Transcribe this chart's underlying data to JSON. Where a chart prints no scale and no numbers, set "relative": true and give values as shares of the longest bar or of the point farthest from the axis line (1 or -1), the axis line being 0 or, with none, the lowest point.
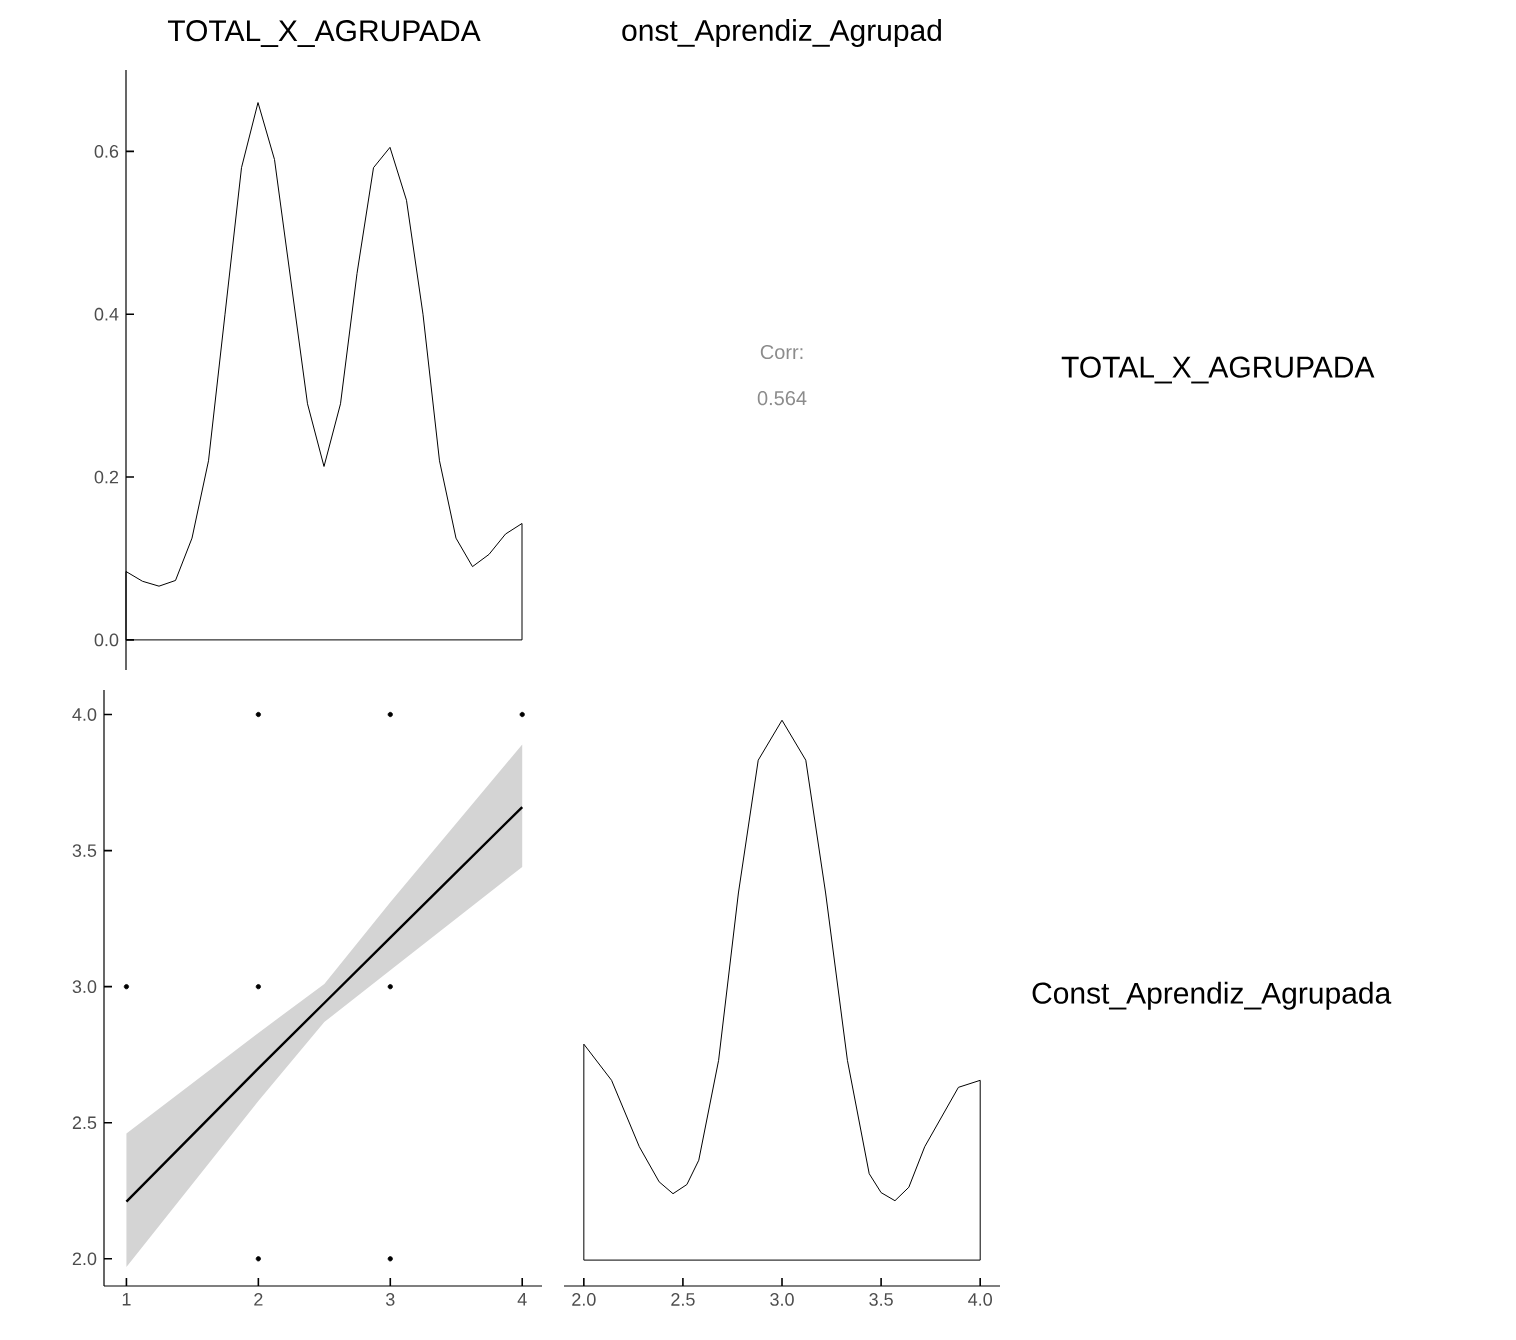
{
  "chart_data": [
    {
      "type": "line",
      "title": "TOTAL_X_AGRUPADA",
      "color": "#000000",
      "categories": [
        null,
        null,
        null,
        null,
        null,
        null,
        null,
        null,
        null,
        null,
        null,
        null,
        null,
        null,
        null,
        null,
        null,
        null,
        null,
        null,
        null,
        null,
        null,
        null,
        null
      ],
      "values": [
        0.084,
        0.072,
        0.066,
        0.073,
        0.125,
        0.22,
        0.4,
        0.58,
        0.66,
        0.59,
        0.44,
        0.29,
        0.213,
        0.29,
        0.45,
        0.58,
        0.605,
        0.54,
        0.4,
        0.22,
        0.125,
        0.09,
        0.105,
        0.13,
        0.143
      ],
      "ylim": [
        -0.037,
        0.7
      ],
      "yticks": [
        {
          "value": 0,
          "label": "0.0"
        },
        {
          "value": 0.2,
          "label": "0.2"
        },
        {
          "value": 0.4,
          "label": "0.4"
        },
        {
          "value": 0.6,
          "label": "0.6"
        }
      ],
      "tick_labels": "y"
    },
    {
      "type": "other",
      "title": "onst_Aprendiz_Agrupad",
      "annotations": [
        "Corr:",
        "0.564"
      ],
      "y2label": "TOTAL_X_AGRUPADA"
    },
    {
      "type": "scatter",
      "xlim": [
        0.83,
        4.15
      ],
      "ylim": [
        1.9,
        4.09
      ],
      "xticks": [
        1,
        2,
        3,
        4
      ],
      "yticks": [
        {
          "value": 2,
          "label": "2.0"
        },
        {
          "value": 2.5,
          "label": "2.5"
        },
        {
          "value": 3,
          "label": "3.0"
        },
        {
          "value": 3.5,
          "label": "3.5"
        },
        {
          "value": 4,
          "label": "4.0"
        }
      ],
      "series": [
        {
          "type": "line",
          "color": "#000000",
          "x": [
            1,
            2,
            2.5,
            3,
            4
          ],
          "values": [
            2.21,
            2.7,
            2.94,
            3.18,
            3.66
          ],
          "lower": [
            1.97,
            2.58,
            2.87,
            3.06,
            3.44
          ],
          "upper": [
            2.46,
            2.83,
            3.01,
            3.31,
            3.89
          ]
        },
        {
          "type": "scatter",
          "color": "#000000",
          "x": [
            1,
            2,
            2,
            2,
            3,
            3,
            3,
            4
          ],
          "values": [
            3,
            4,
            3,
            2,
            4,
            3,
            2,
            4
          ]
        }
      ]
    },
    {
      "type": "line",
      "relative": true,
      "color": "#000000",
      "x": [
        2.0,
        2.14,
        2.28,
        2.38,
        2.45,
        2.52,
        2.58,
        2.68,
        2.78,
        2.88,
        3.0,
        3.12,
        3.22,
        3.33,
        3.44,
        3.5,
        3.57,
        3.64,
        3.72,
        3.89,
        4.0
      ],
      "values": [
        0.4,
        0.333,
        0.21,
        0.145,
        0.123,
        0.14,
        0.185,
        0.37,
        0.68,
        0.926,
        1.0,
        0.926,
        0.68,
        0.37,
        0.16,
        0.125,
        0.11,
        0.135,
        0.21,
        0.32,
        0.333
      ],
      "xlim": [
        1.9,
        4.1
      ],
      "xticks": [
        {
          "value": 2,
          "label": "2.0"
        },
        {
          "value": 2.5,
          "label": "2.5"
        },
        {
          "value": 3,
          "label": "3.0"
        },
        {
          "value": 3.5,
          "label": "3.5"
        },
        {
          "value": 4,
          "label": "4.0"
        }
      ],
      "tick_labels": "x",
      "y2label": "Const_Aprendiz_Agrupada"
    }
  ]
}
